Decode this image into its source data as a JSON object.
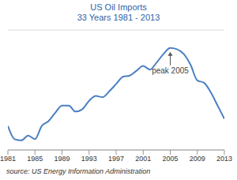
{
  "chart_data": {
    "type": "line",
    "title": "US Oil Imports",
    "subtitle": "33 Years 1981 - 2013",
    "source": "source: US Energy Information Administration",
    "x": [
      1981,
      1982,
      1983,
      1984,
      1985,
      1986,
      1987,
      1988,
      1989,
      1990,
      1991,
      1992,
      1993,
      1994,
      1995,
      1996,
      1997,
      1998,
      1999,
      2000,
      2001,
      2002,
      2003,
      2004,
      2005,
      2006,
      2007,
      2008,
      2009,
      2010,
      2011,
      2012,
      2013
    ],
    "values": [
      6.0,
      4.9,
      4.8,
      5.2,
      4.9,
      6.0,
      6.4,
      7.1,
      7.7,
      7.7,
      7.2,
      7.4,
      8.1,
      8.5,
      8.4,
      8.9,
      9.5,
      10.1,
      10.2,
      10.6,
      11.0,
      10.7,
      11.3,
      12.0,
      12.5,
      12.4,
      12.0,
      11.1,
      9.8,
      9.6,
      8.8,
      7.7,
      6.6
    ],
    "color": "#4a7fc1",
    "xlim": [
      1981,
      2013
    ],
    "xticks": [
      1981,
      1985,
      1989,
      1993,
      1997,
      2001,
      2005,
      2009,
      2013
    ],
    "ylim": [
      4,
      14
    ],
    "yticks": [
      4,
      6,
      8,
      10,
      12,
      14
    ],
    "grid": true,
    "tick_labels": "x",
    "annotations": [
      {
        "text": "peak 2005",
        "x": 2005
      }
    ]
  }
}
